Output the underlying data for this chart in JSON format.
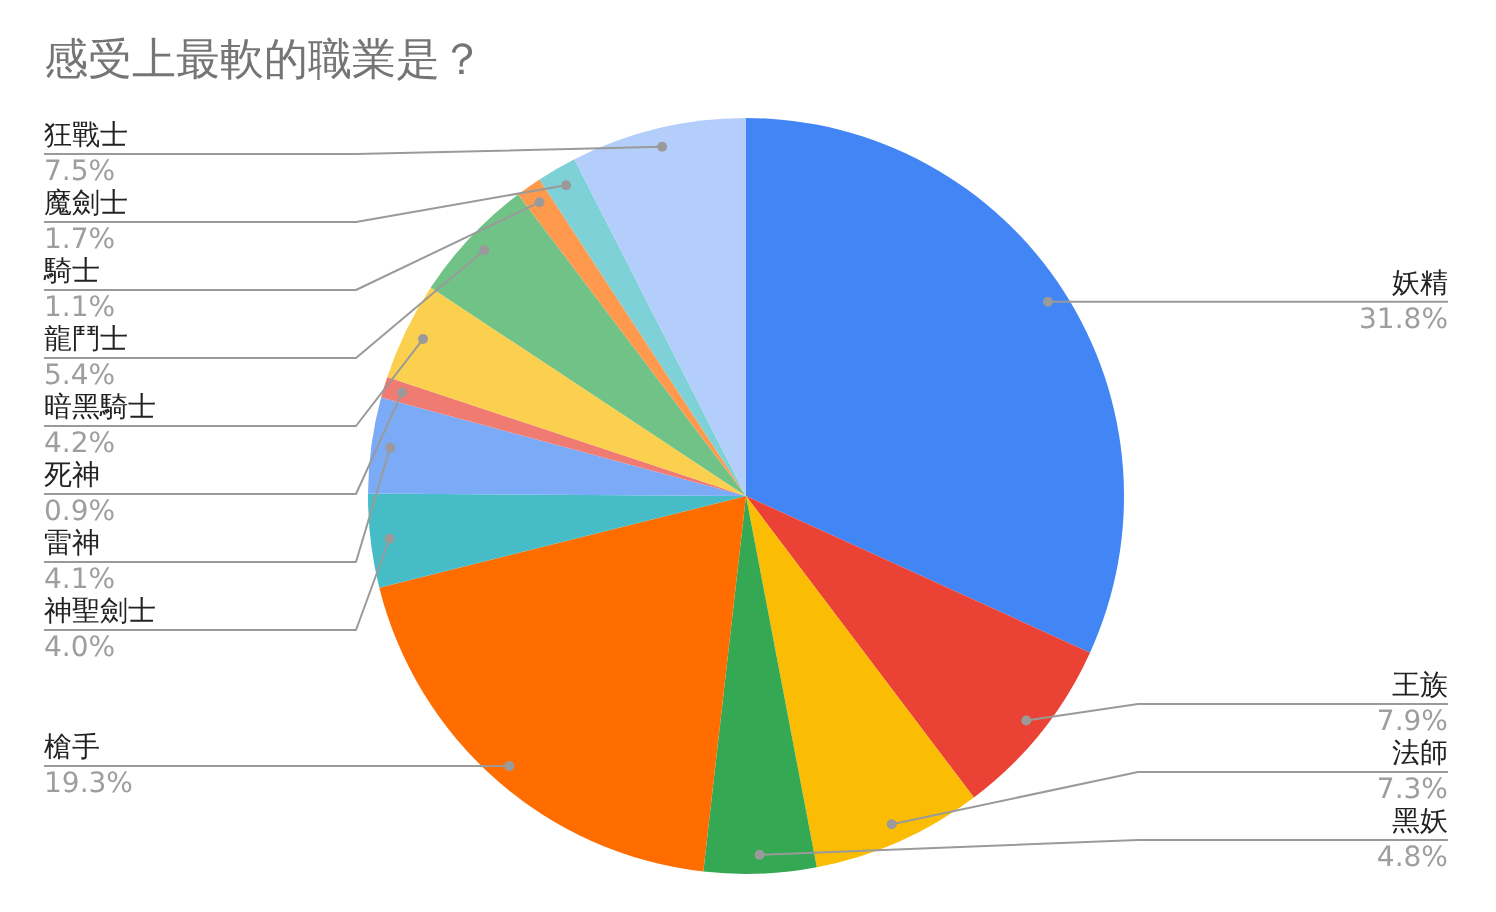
{
  "chart_data": {
    "type": "pie",
    "title": "感受上最軟的職業是？",
    "categories": [
      "妖精",
      "王族",
      "法師",
      "黑妖",
      "槍手",
      "神聖劍士",
      "雷神",
      "死神",
      "暗黑騎士",
      "龍鬥士",
      "騎士",
      "魔劍士",
      "狂戰士"
    ],
    "values": [
      31.8,
      7.9,
      7.3,
      4.8,
      19.3,
      4.0,
      4.1,
      0.9,
      4.2,
      5.4,
      1.1,
      1.7,
      7.5
    ],
    "colors": [
      "#4285f4",
      "#ea4335",
      "#fbbc04",
      "#34a853",
      "#ff6d01",
      "#46bdc6",
      "#7baaf7",
      "#f07b72",
      "#fcd04f",
      "#71c287",
      "#ff994d",
      "#7ed1d7",
      "#b3cefb"
    ],
    "value_labels": [
      "31.8%",
      "7.9%",
      "7.3%",
      "4.8%",
      "19.3%",
      "4.0%",
      "4.1%",
      "0.9%",
      "4.2%",
      "5.4%",
      "1.1%",
      "1.7%",
      "7.5%"
    ]
  }
}
